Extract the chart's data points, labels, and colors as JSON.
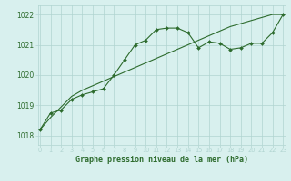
{
  "hours": [
    0,
    1,
    2,
    3,
    4,
    5,
    6,
    7,
    8,
    9,
    10,
    11,
    12,
    13,
    14,
    15,
    16,
    17,
    18,
    19,
    20,
    21,
    22,
    23
  ],
  "pressure_curve": [
    1018.2,
    1018.75,
    1018.85,
    1019.2,
    1019.35,
    1019.45,
    1019.55,
    1020.0,
    1020.5,
    1021.0,
    1021.15,
    1021.5,
    1021.55,
    1021.55,
    1021.4,
    1020.9,
    1021.1,
    1021.05,
    1020.85,
    1020.9,
    1021.05,
    1021.05,
    1021.4,
    1022.0
  ],
  "pressure_line": [
    1018.2,
    1018.6,
    1018.95,
    1019.3,
    1019.5,
    1019.65,
    1019.8,
    1019.95,
    1020.1,
    1020.25,
    1020.4,
    1020.55,
    1020.7,
    1020.85,
    1021.0,
    1021.15,
    1021.3,
    1021.45,
    1021.6,
    1021.7,
    1021.8,
    1021.9,
    1022.0,
    1022.0
  ],
  "line_color": "#2d6b2d",
  "bg_color": "#d8f0ee",
  "grid_color": "#b0d4d0",
  "text_color": "#2d6b2d",
  "xlabel": "Graphe pression niveau de la mer (hPa)",
  "ylim": [
    1017.7,
    1022.3
  ],
  "yticks": [
    1018,
    1019,
    1020,
    1021,
    1022
  ],
  "xlim": [
    -0.2,
    23.2
  ],
  "xtick_labels": [
    "0",
    "1",
    "2",
    "3",
    "4",
    "5",
    "6",
    "7",
    "8",
    "9",
    "10",
    "11",
    "12",
    "13",
    "14",
    "15",
    "16",
    "17",
    "18",
    "19",
    "20",
    "21",
    "22",
    "23"
  ]
}
